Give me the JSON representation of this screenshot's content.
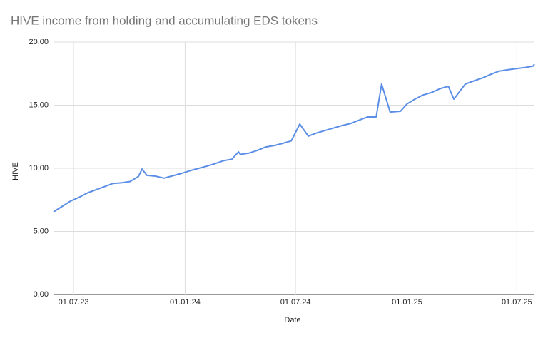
{
  "chart_data": {
    "type": "line",
    "title": "HIVE income from holding and accumulating EDS tokens",
    "x_label": "Date",
    "y_label": "HIVE",
    "x": [
      "2023-05-29",
      "2023-06-12",
      "2023-06-26",
      "2023-07-10",
      "2023-07-24",
      "2023-08-07",
      "2023-08-21",
      "2023-09-04",
      "2023-09-18",
      "2023-10-02",
      "2023-10-16",
      "2023-10-22",
      "2023-10-30",
      "2023-11-13",
      "2023-11-27",
      "2023-12-11",
      "2023-12-25",
      "2024-01-08",
      "2024-01-22",
      "2024-02-05",
      "2024-02-19",
      "2024-03-04",
      "2024-03-18",
      "2024-03-29",
      "2024-04-01",
      "2024-04-15",
      "2024-04-29",
      "2024-05-13",
      "2024-05-27",
      "2024-06-10",
      "2024-06-24",
      "2024-07-08",
      "2024-07-22",
      "2024-08-05",
      "2024-08-19",
      "2024-09-02",
      "2024-09-16",
      "2024-09-30",
      "2024-10-14",
      "2024-10-28",
      "2024-11-11",
      "2024-11-20",
      "2024-12-04",
      "2024-12-21",
      "2025-01-01",
      "2025-01-13",
      "2025-01-27",
      "2025-02-10",
      "2025-02-24",
      "2025-03-10",
      "2025-03-19",
      "2025-04-07",
      "2025-04-21",
      "2025-05-05",
      "2025-05-19",
      "2025-06-02",
      "2025-06-16",
      "2025-06-30",
      "2025-07-14",
      "2025-07-28",
      "2025-07-30"
    ],
    "series": [
      {
        "name": "HIVE",
        "color": "#5b8ee6",
        "values": [
          6.55,
          6.98,
          7.4,
          7.7,
          8.05,
          8.3,
          8.55,
          8.8,
          8.85,
          8.95,
          9.35,
          9.94,
          9.44,
          9.38,
          9.22,
          9.4,
          9.58,
          9.79,
          9.98,
          10.16,
          10.36,
          10.6,
          10.72,
          11.3,
          11.1,
          11.2,
          11.42,
          11.69,
          11.8,
          11.98,
          12.17,
          13.5,
          12.55,
          12.8,
          13.0,
          13.2,
          13.39,
          13.55,
          13.82,
          14.07,
          14.07,
          16.67,
          14.46,
          14.52,
          15.1,
          15.45,
          15.8,
          16.0,
          16.3,
          16.5,
          15.48,
          16.67,
          16.92,
          17.15,
          17.44,
          17.7,
          17.8,
          17.9,
          17.98,
          18.1,
          18.25
        ]
      }
    ],
    "xlim": [
      "2023-05-29",
      "2025-07-30"
    ],
    "xticks": [
      {
        "value": "2023-07-01",
        "label": "01.07.23"
      },
      {
        "value": "2024-01-01",
        "label": "01.01.24"
      },
      {
        "value": "2024-07-01",
        "label": "01.07.24"
      },
      {
        "value": "2025-01-01",
        "label": "01.01.25"
      },
      {
        "value": "2025-07-01",
        "label": "01.07.25"
      }
    ],
    "ylim": [
      0,
      20
    ],
    "yticks": [
      {
        "value": 0,
        "label": "0,00"
      },
      {
        "value": 5,
        "label": "5,00"
      },
      {
        "value": 10,
        "label": "10,00"
      },
      {
        "value": 15,
        "label": "15,00"
      },
      {
        "value": 20,
        "label": "20,00"
      }
    ],
    "grid": true
  }
}
